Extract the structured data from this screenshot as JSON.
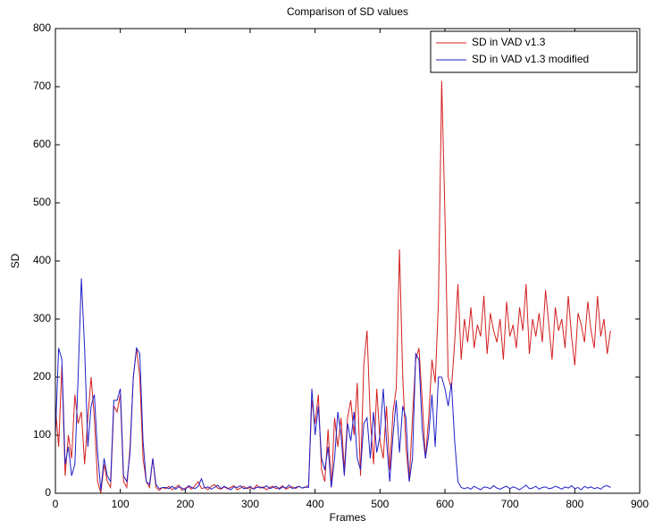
{
  "chart_data": {
    "type": "line",
    "title": "Comparison of SD values",
    "x_label": "Frames",
    "y_label": "SD",
    "x": [
      0,
      5,
      10,
      15,
      20,
      25,
      30,
      35,
      40,
      45,
      50,
      55,
      60,
      65,
      70,
      75,
      80,
      85,
      90,
      95,
      100,
      105,
      110,
      115,
      120,
      125,
      130,
      135,
      140,
      145,
      150,
      155,
      160,
      165,
      170,
      175,
      180,
      185,
      190,
      195,
      200,
      205,
      210,
      215,
      220,
      225,
      230,
      235,
      240,
      245,
      250,
      255,
      260,
      265,
      270,
      275,
      280,
      285,
      290,
      295,
      300,
      305,
      310,
      315,
      320,
      325,
      330,
      335,
      340,
      345,
      350,
      355,
      360,
      365,
      370,
      375,
      380,
      385,
      390,
      395,
      400,
      405,
      410,
      415,
      420,
      425,
      430,
      435,
      440,
      445,
      450,
      455,
      460,
      465,
      470,
      475,
      480,
      485,
      490,
      495,
      500,
      505,
      510,
      515,
      520,
      525,
      530,
      535,
      540,
      545,
      550,
      555,
      560,
      565,
      570,
      575,
      580,
      585,
      590,
      595,
      600,
      605,
      610,
      615,
      620,
      625,
      630,
      635,
      640,
      645,
      650,
      655,
      660,
      665,
      670,
      675,
      680,
      685,
      690,
      695,
      700,
      705,
      710,
      715,
      720,
      725,
      730,
      735,
      740,
      745,
      750,
      755,
      760,
      765,
      770,
      775,
      780,
      785,
      790,
      795,
      800,
      805,
      810,
      815,
      820,
      825,
      830,
      835,
      840,
      845,
      850,
      855
    ],
    "series": [
      {
        "name": "SD in VAD v1.3",
        "color": "#d42020",
        "values": [
          150,
          80,
          220,
          30,
          100,
          60,
          170,
          120,
          140,
          50,
          130,
          200,
          130,
          20,
          0,
          50,
          20,
          10,
          150,
          140,
          170,
          20,
          10,
          80,
          200,
          250,
          200,
          60,
          20,
          10,
          60,
          10,
          5,
          10,
          8,
          12,
          6,
          10,
          14,
          5,
          9,
          11,
          7,
          13,
          20,
          8,
          10,
          6,
          12,
          15,
          9,
          7,
          11,
          8,
          10,
          13,
          6,
          9,
          12,
          8,
          10,
          7,
          14,
          9,
          11,
          6,
          10,
          12,
          8,
          9,
          13,
          7,
          10,
          11,
          8,
          12,
          9,
          10,
          14,
          160,
          120,
          170,
          40,
          20,
          110,
          10,
          130,
          80,
          130,
          40,
          130,
          160,
          100,
          190,
          30,
          220,
          280,
          130,
          50,
          180,
          90,
          60,
          150,
          40,
          140,
          180,
          420,
          200,
          80,
          20,
          130,
          230,
          250,
          160,
          60,
          130,
          230,
          190,
          330,
          710,
          480,
          200,
          180,
          260,
          360,
          230,
          300,
          260,
          320,
          250,
          290,
          270,
          340,
          240,
          310,
          280,
          260,
          300,
          230,
          330,
          270,
          290,
          250,
          320,
          280,
          360,
          240,
          300,
          270,
          310,
          260,
          350,
          290,
          230,
          320,
          280,
          300,
          250,
          340,
          270,
          220,
          310,
          290,
          260,
          330,
          280,
          250,
          340,
          270,
          300,
          240,
          280
        ]
      },
      {
        "name": "SD in VAD v1.3 modified",
        "color": "#2020c8",
        "values": [
          100,
          250,
          230,
          50,
          80,
          30,
          50,
          200,
          370,
          250,
          80,
          150,
          170,
          70,
          5,
          60,
          30,
          20,
          160,
          160,
          180,
          30,
          20,
          70,
          200,
          250,
          240,
          90,
          20,
          15,
          60,
          15,
          8,
          10,
          10,
          8,
          12,
          7,
          11,
          9,
          6,
          13,
          10,
          8,
          12,
          25,
          9,
          11,
          7,
          10,
          14,
          8,
          12,
          9,
          6,
          11,
          10,
          13,
          8,
          9,
          12,
          7,
          10,
          11,
          9,
          13,
          8,
          10,
          12,
          7,
          11,
          9,
          14,
          8,
          10,
          12,
          9,
          11,
          10,
          180,
          100,
          150,
          60,
          40,
          80,
          10,
          60,
          140,
          100,
          30,
          120,
          90,
          140,
          60,
          40,
          120,
          130,
          60,
          140,
          70,
          100,
          180,
          90,
          20,
          100,
          160,
          70,
          150,
          130,
          20,
          60,
          240,
          230,
          110,
          60,
          100,
          170,
          80,
          200,
          200,
          180,
          150,
          190,
          90,
          20,
          10,
          8,
          10,
          7,
          12,
          9,
          6,
          11,
          10,
          8,
          13,
          9,
          7,
          10,
          12,
          8,
          11,
          9,
          6,
          10,
          14,
          8,
          9,
          12,
          7,
          10,
          11,
          8,
          9,
          12,
          10,
          7,
          11,
          9,
          13,
          8,
          10,
          6,
          12,
          9,
          11,
          8,
          10,
          7,
          12,
          13,
          10
        ]
      }
    ],
    "xlim": [
      0,
      900
    ],
    "xticks": [
      0,
      100,
      200,
      300,
      400,
      500,
      600,
      700,
      800,
      900
    ],
    "ylim": [
      0,
      800
    ],
    "yticks": [
      0,
      100,
      200,
      300,
      400,
      500,
      600,
      700,
      800
    ],
    "legend": "top-right"
  }
}
